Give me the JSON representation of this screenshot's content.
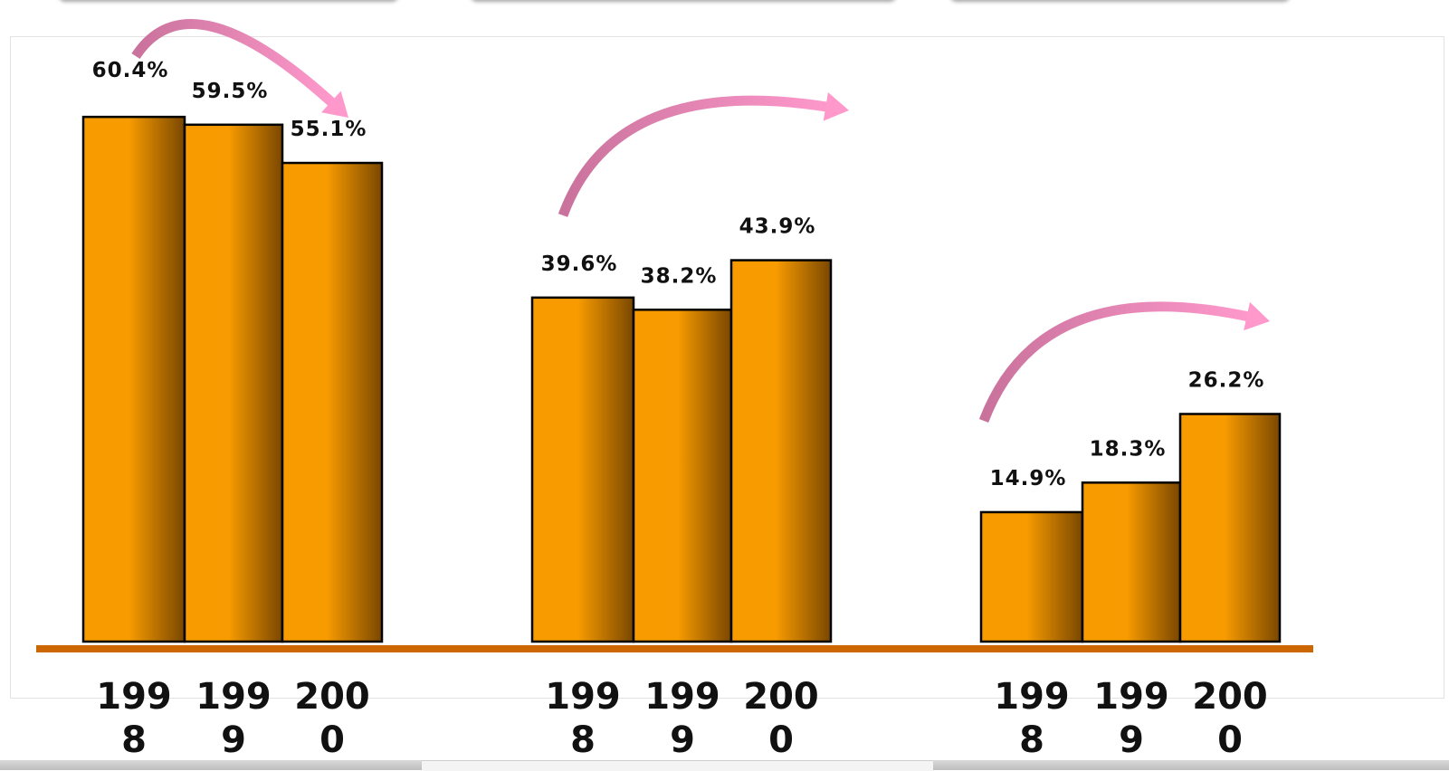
{
  "chart_data": {
    "type": "bar",
    "title": "",
    "xlabel": "",
    "ylabel": "",
    "ylim": [
      0,
      64
    ],
    "grid": false,
    "legend": "none",
    "groups": [
      {
        "categories": [
          "1998",
          "1999",
          "2000"
        ],
        "category_labels": [
          "199\n8",
          "199\n9",
          "200\n0"
        ],
        "values": [
          60.4,
          59.5,
          55.1
        ],
        "data_labels": [
          "60.4%",
          "59.5%",
          "55.1%"
        ]
      },
      {
        "categories": [
          "1998",
          "1999",
          "2000"
        ],
        "category_labels": [
          "199\n8",
          "199\n9",
          "200\n0"
        ],
        "values": [
          39.6,
          38.2,
          43.9
        ],
        "data_labels": [
          "39.6%",
          "38.2%",
          "43.9%"
        ]
      },
      {
        "categories": [
          "1998",
          "1999",
          "2000"
        ],
        "category_labels": [
          "199\n8",
          "199\n9",
          "200\n0"
        ],
        "values": [
          14.9,
          18.3,
          26.2
        ],
        "data_labels": [
          "14.9%",
          "18.3%",
          "26.2%"
        ]
      }
    ]
  },
  "colors": {
    "bar_light": "#f79b00",
    "bar_dark": "#7a4700",
    "baseline": "#cc6600",
    "arrow_start": "#c9729c",
    "arrow_end": "#ff99cc"
  }
}
